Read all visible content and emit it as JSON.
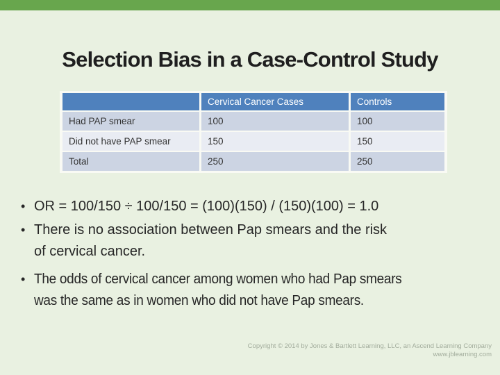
{
  "slide": {
    "title": "Selection Bias in a Case-Control Study"
  },
  "table": {
    "headers": [
      "",
      "Cervical Cancer Cases",
      "Controls"
    ],
    "rows": [
      {
        "label": "Had PAP smear",
        "cases": "100",
        "controls": "100"
      },
      {
        "label": "Did not have PAP smear",
        "cases": "150",
        "controls": "150"
      },
      {
        "label": "Total",
        "cases": "250",
        "controls": "250"
      }
    ]
  },
  "chart_data": {
    "type": "table",
    "title": "Selection Bias in a Case-Control Study",
    "columns": [
      "",
      "Cervical Cancer Cases",
      "Controls"
    ],
    "rows": [
      [
        "Had PAP smear",
        100,
        100
      ],
      [
        "Did not have PAP smear",
        150,
        150
      ],
      [
        "Total",
        250,
        250
      ]
    ]
  },
  "bullets": [
    {
      "text": "OR =  100/150 ÷ 100/150 = (100)(150) / (150)(100) = 1.0"
    },
    {
      "text": "There is no association between Pap smears and the risk\nof cervical cancer."
    },
    {
      "text": "The odds of cervical cancer among women who had Pap smears\nwas the same as in women who did not have Pap smears."
    }
  ],
  "footer": {
    "copyright": "Copyright © 2014 by Jones & Bartlett Learning, LLC, an Ascend Learning Company\nwww.jblearning.com"
  },
  "colors": {
    "top_bar_green": "#68a64d",
    "background": "#e9f1e1",
    "table_header_blue": "#4f81bd",
    "table_row_dark": "#ccd4e3",
    "table_row_light": "#e9ecf3",
    "title_text": "#1f1f1f",
    "body_text": "#262626",
    "copyright_text": "#a2ac9c"
  }
}
